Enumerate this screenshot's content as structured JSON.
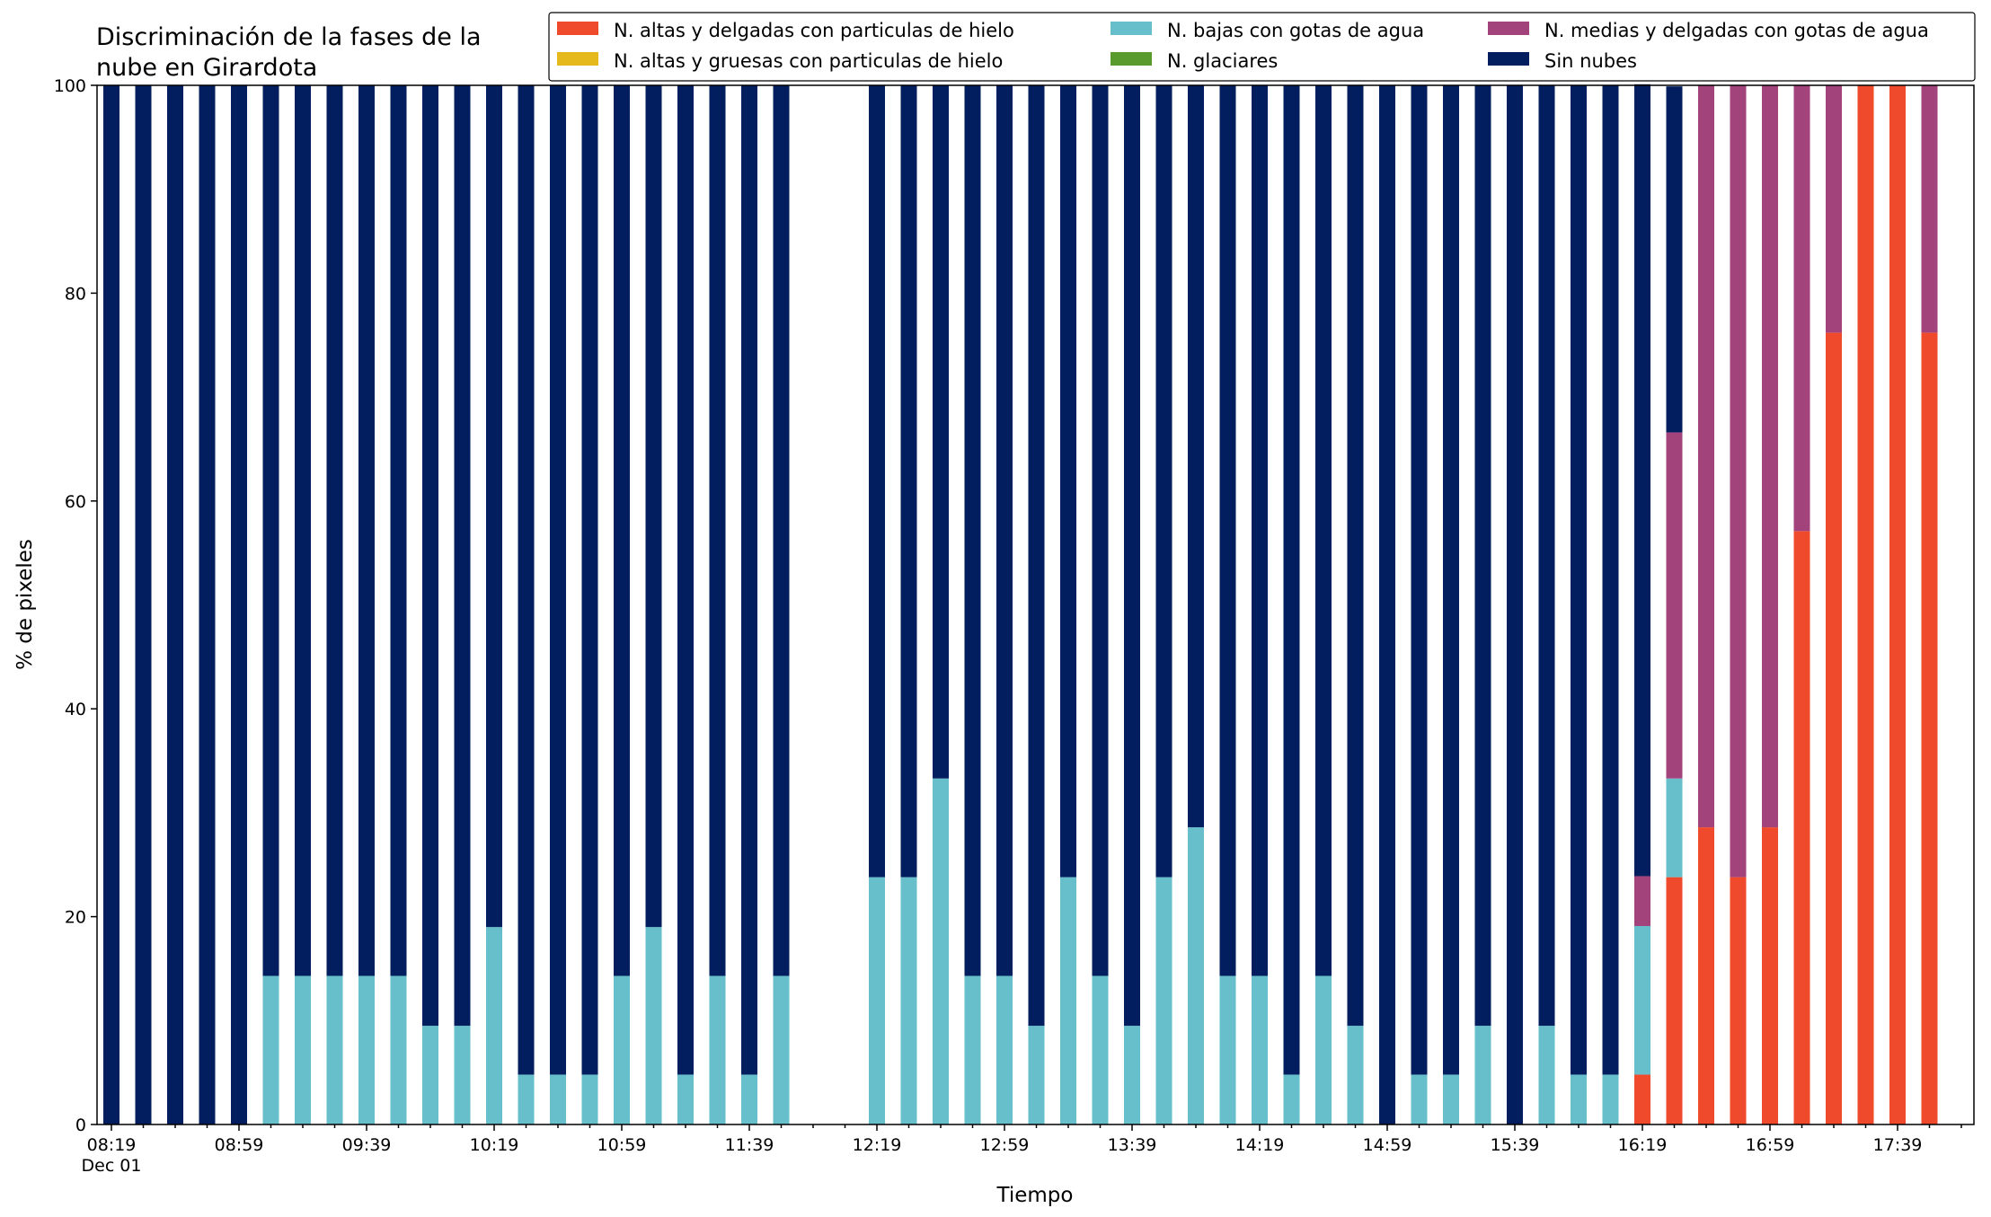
{
  "chart_data": {
    "type": "bar",
    "stacked": true,
    "title": "Discriminación de la fases de la\nnube en Girardota",
    "xlabel": "Tiempo",
    "ylabel": "% de pixeles",
    "ylim": [
      0,
      100
    ],
    "yticks": [
      0,
      20,
      40,
      60,
      80,
      100
    ],
    "grid": false,
    "legend_position": "top-right",
    "legend_columns": 3,
    "x_start": "08:19",
    "x_step_minutes": 10,
    "x_tick_labels": [
      "08:19\nDec 01",
      "08:59",
      "09:39",
      "10:19",
      "10:59",
      "11:39",
      "12:19",
      "12:59",
      "13:39",
      "14:19",
      "14:59",
      "15:39",
      "16:19",
      "16:59",
      "17:39"
    ],
    "categories": [
      "08:19",
      "08:29",
      "08:39",
      "08:49",
      "08:59",
      "09:09",
      "09:19",
      "09:29",
      "09:39",
      "09:49",
      "09:59",
      "10:09",
      "10:19",
      "10:29",
      "10:39",
      "10:49",
      "10:59",
      "11:09",
      "11:19",
      "11:29",
      "11:39",
      "11:49",
      "11:59",
      "12:09",
      "12:19",
      "12:29",
      "12:39",
      "12:49",
      "12:59",
      "13:09",
      "13:19",
      "13:29",
      "13:39",
      "13:49",
      "13:59",
      "14:09",
      "14:19",
      "14:29",
      "14:39",
      "14:49",
      "14:59",
      "15:09",
      "15:19",
      "15:29",
      "15:39",
      "15:49",
      "15:59",
      "16:09",
      "16:19",
      "16:29",
      "16:39",
      "16:49",
      "16:59",
      "17:09",
      "17:19",
      "17:29",
      "17:39",
      "17:49"
    ],
    "series": [
      {
        "name": "N. altas y delgadas con particulas de hielo",
        "color": "#ef4a2b",
        "values": [
          0,
          0,
          0,
          0,
          0,
          0,
          0,
          0,
          0,
          0,
          0,
          0,
          0,
          0,
          0,
          0,
          0,
          0,
          0,
          0,
          0,
          0,
          0,
          0,
          0,
          0,
          0,
          0,
          0,
          0,
          0,
          0,
          0,
          0,
          0,
          0,
          0,
          0,
          0,
          0,
          0,
          0,
          0,
          0,
          0,
          0,
          0,
          0,
          4.8,
          23.8,
          28.6,
          23.8,
          28.6,
          57.1,
          76.2,
          100,
          100,
          76.2
        ]
      },
      {
        "name": "N. altas y gruesas con particulas de hielo",
        "color": "#e5b81c",
        "values": [
          0,
          0,
          0,
          0,
          0,
          0,
          0,
          0,
          0,
          0,
          0,
          0,
          0,
          0,
          0,
          0,
          0,
          0,
          0,
          0,
          0,
          0,
          0,
          0,
          0,
          0,
          0,
          0,
          0,
          0,
          0,
          0,
          0,
          0,
          0,
          0,
          0,
          0,
          0,
          0,
          0,
          0,
          0,
          0,
          0,
          0,
          0,
          0,
          0,
          0,
          0,
          0,
          0,
          0,
          0,
          0,
          0,
          0
        ]
      },
      {
        "name": "N. bajas con gotas de agua",
        "color": "#66bfca",
        "values": [
          0,
          0,
          0,
          0,
          0,
          14.3,
          14.3,
          14.3,
          14.3,
          14.3,
          9.5,
          9.5,
          19.0,
          4.8,
          4.8,
          4.8,
          14.3,
          19.0,
          4.8,
          14.3,
          4.8,
          14.3,
          0,
          0,
          23.8,
          23.8,
          33.3,
          14.3,
          14.3,
          9.5,
          23.8,
          14.3,
          9.5,
          23.8,
          28.6,
          14.3,
          14.3,
          4.8,
          14.3,
          9.5,
          0,
          4.8,
          4.8,
          9.5,
          0,
          9.5,
          4.8,
          4.8,
          14.3,
          9.5,
          0,
          0,
          0,
          0,
          0,
          0,
          0,
          0
        ]
      },
      {
        "name": "N. glaciares",
        "color": "#5a9b2e",
        "values": [
          0,
          0,
          0,
          0,
          0,
          0,
          0,
          0,
          0,
          0,
          0,
          0,
          0,
          0,
          0,
          0,
          0,
          0,
          0,
          0,
          0,
          0,
          0,
          0,
          0,
          0,
          0,
          0,
          0,
          0,
          0,
          0,
          0,
          0,
          0,
          0,
          0,
          0,
          0,
          0,
          0,
          0,
          0,
          0,
          0,
          0,
          0,
          0,
          0,
          0,
          0,
          0,
          0,
          0,
          0,
          0,
          0,
          0
        ]
      },
      {
        "name": "N. medias y delgadas con gotas de agua",
        "color": "#a2437b",
        "values": [
          0,
          0,
          0,
          0,
          0,
          0,
          0,
          0,
          0,
          0,
          0,
          0,
          0,
          0,
          0,
          0,
          0,
          0,
          0,
          0,
          0,
          0,
          0,
          0,
          0,
          0,
          0,
          0,
          0,
          0,
          0,
          0,
          0,
          0,
          0,
          0,
          0,
          0,
          0,
          0,
          0,
          0,
          0,
          0,
          0,
          0,
          0,
          0,
          4.8,
          33.3,
          71.4,
          76.2,
          71.4,
          42.9,
          23.8,
          0,
          0,
          23.8
        ]
      },
      {
        "name": "Sin nubes",
        "color": "#021e5e",
        "values": [
          100,
          100,
          100,
          100,
          100,
          85.7,
          85.7,
          85.7,
          85.7,
          85.7,
          90.5,
          90.5,
          81.0,
          95.2,
          95.2,
          95.2,
          85.7,
          81.0,
          95.2,
          85.7,
          95.2,
          85.7,
          0,
          0,
          76.2,
          76.2,
          66.7,
          85.7,
          85.7,
          90.5,
          76.2,
          85.7,
          90.5,
          76.2,
          71.4,
          85.7,
          85.7,
          95.2,
          85.7,
          90.5,
          100,
          95.2,
          95.2,
          90.5,
          100,
          90.5,
          95.2,
          95.2,
          76.2,
          33.3,
          0,
          0,
          0,
          0,
          0,
          0,
          0,
          0
        ]
      }
    ],
    "legend_order": [
      "N. altas y delgadas con particulas de hielo",
      "N. bajas con gotas de agua",
      "N. medias y delgadas con gotas de agua",
      "N. altas y gruesas con particulas de hielo",
      "N. glaciares",
      "Sin nubes"
    ]
  }
}
